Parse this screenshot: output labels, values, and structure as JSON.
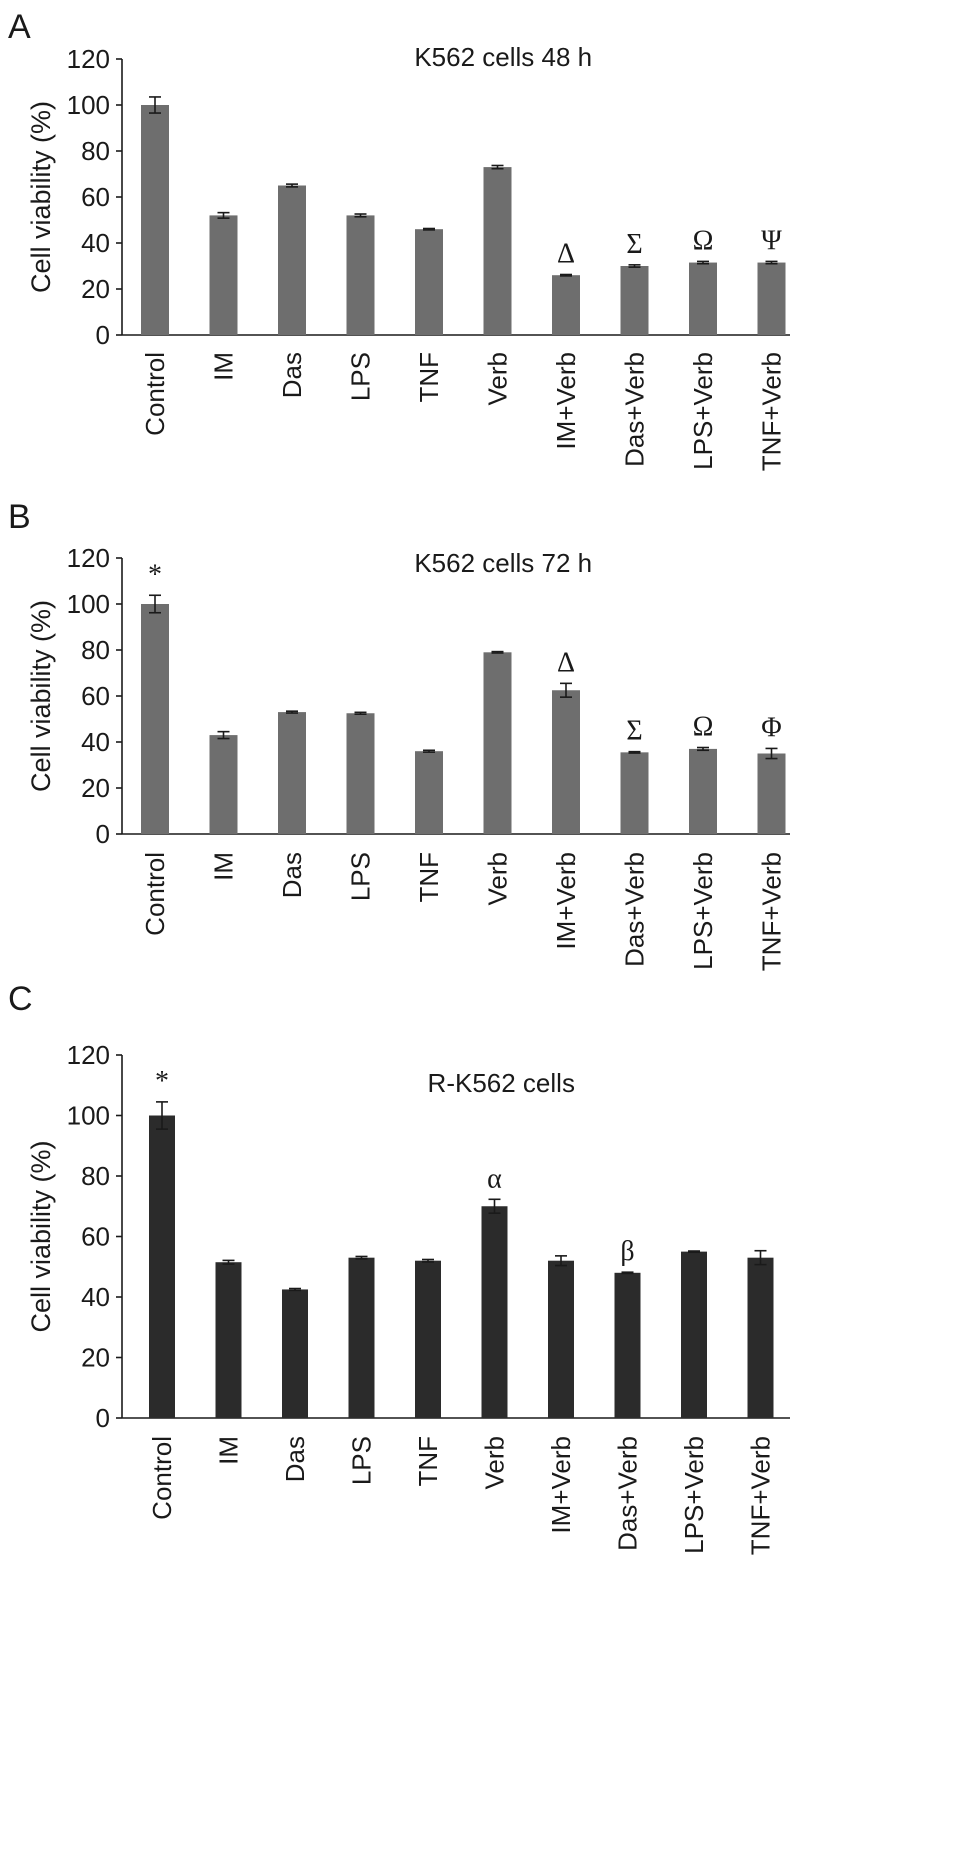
{
  "chart_data": [
    {
      "panel": "A",
      "type": "bar",
      "title": "K562 cells 48 h",
      "ylabel": "Cell viability (%)",
      "xlabel": "",
      "ylim": [
        0,
        120
      ],
      "yticks": [
        0,
        20,
        40,
        60,
        80,
        100,
        120
      ],
      "grid": false,
      "bar_color": "#6e6e6e",
      "categories": [
        "Control",
        "IM",
        "Das",
        "LPS",
        "TNF",
        "Verb",
        "IM+Verb",
        "Das+Verb",
        "LPS+Verb",
        "TNF+Verb"
      ],
      "values": [
        100,
        52,
        65,
        52,
        46,
        73,
        26,
        30,
        31.5,
        31.5
      ],
      "errors": [
        3.5,
        1.2,
        0.6,
        0.6,
        0.3,
        0.7,
        0.3,
        0.5,
        0.5,
        0.5
      ],
      "annotations": [
        "",
        "",
        "",
        "",
        "",
        "",
        "Δ",
        "Σ",
        "Ω",
        "Ψ"
      ]
    },
    {
      "panel": "B",
      "type": "bar",
      "title": "K562 cells 72 h",
      "ylabel": "Cell viability (%)",
      "xlabel": "",
      "ylim": [
        0,
        120
      ],
      "yticks": [
        0,
        20,
        40,
        60,
        80,
        100,
        120
      ],
      "grid": false,
      "bar_color": "#6e6e6e",
      "categories": [
        "Control",
        "IM",
        "Das",
        "LPS",
        "TNF",
        "Verb",
        "IM+Verb",
        "Das+Verb",
        "LPS+Verb",
        "TNF+Verb"
      ],
      "values": [
        100,
        43,
        53,
        52.5,
        36,
        79,
        62.5,
        35.5,
        37,
        35
      ],
      "errors": [
        3.8,
        1.5,
        0.4,
        0.4,
        0.4,
        0.3,
        3,
        0.3,
        0.6,
        2.2
      ],
      "annotations": [
        "*",
        "",
        "",
        "",
        "",
        "",
        "Δ",
        "Σ",
        "Ω",
        "Φ"
      ]
    },
    {
      "panel": "C",
      "type": "bar",
      "title": "R-K562 cells",
      "ylabel": "Cell viability (%)",
      "xlabel": "",
      "ylim": [
        0,
        120
      ],
      "yticks": [
        0,
        20,
        40,
        60,
        80,
        100,
        120
      ],
      "grid": false,
      "bar_color": "#2b2b2b",
      "categories": [
        "Control",
        "IM",
        "Das",
        "LPS",
        "TNF",
        "Verb",
        "IM+Verb",
        "Das+Verb",
        "LPS+Verb",
        "TNF+Verb"
      ],
      "values": [
        100,
        51.5,
        42.5,
        53,
        52,
        70,
        52,
        48,
        55,
        53
      ],
      "errors": [
        4.5,
        0.6,
        0.3,
        0.4,
        0.4,
        2.3,
        1.6,
        0.2,
        0.2,
        2.3
      ],
      "annotations": [
        "*",
        "",
        "",
        "",
        "",
        "α",
        "",
        "β",
        "",
        ""
      ]
    }
  ]
}
